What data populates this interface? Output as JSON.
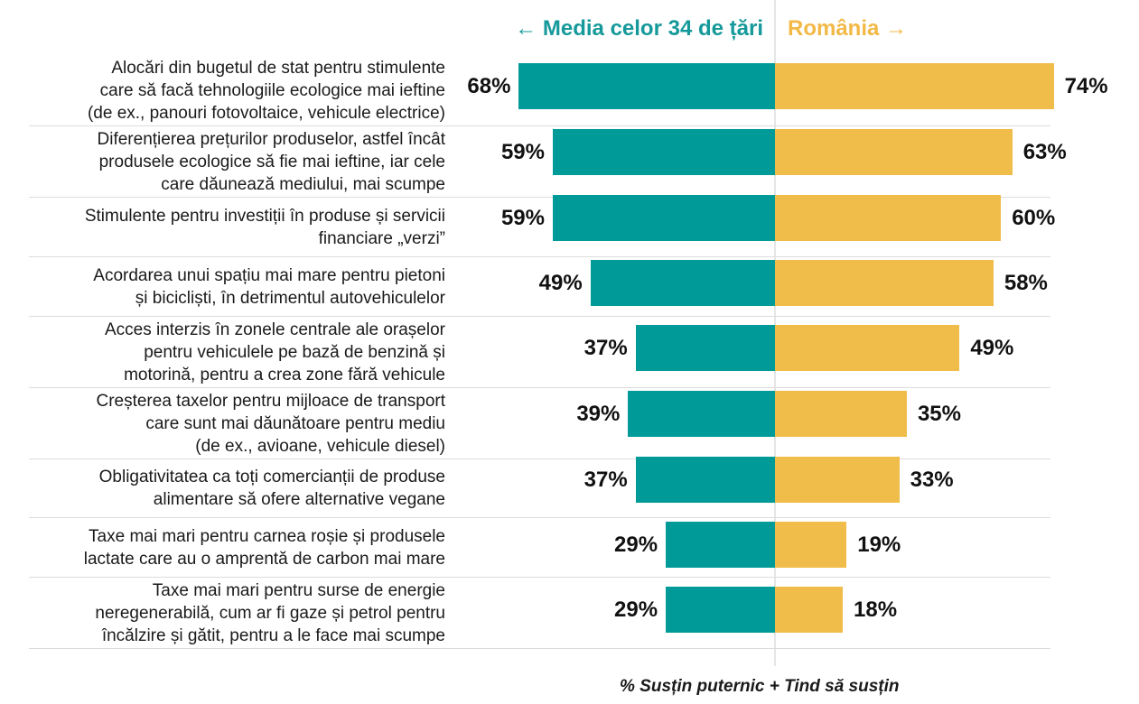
{
  "chart_data": {
    "type": "bar",
    "orientation": "horizontal-diverging",
    "title": "",
    "xlabel": "% Susțin puternic + Tind să susțin",
    "ylabel": "",
    "unit": "%",
    "xlim": [
      0,
      80
    ],
    "grid": false,
    "legend_position": "top",
    "colors": {
      "left_series": "#009b98",
      "right_series": "#f0bc4a",
      "left_header_text": "#16999a",
      "right_header_text": "#f2b947"
    },
    "categories": [
      "Alocări din bugetul de stat pentru stimulente care să facă tehnologiile ecologice mai ieftine (de ex., panouri fotovoltaice, vehicule electrice)",
      "Diferențierea prețurilor produselor, astfel încât produsele ecologice să fie mai ieftine, iar cele care dăunează mediului, mai scumpe",
      "Stimulente pentru investiții în produse și servicii financiare „verzi”",
      "Acordarea unui spațiu mai mare pentru pietoni și bicicliști, în detrimentul autovehiculelor",
      "Acces interzis în zonele centrale ale orașelor pentru vehiculele pe bază de benzină și motorină, pentru a crea zone fără vehicule",
      "Creșterea taxelor pentru mijloace de transport care sunt mai dăunătoare pentru mediu (de ex., avioane, vehicule diesel)",
      "Obligativitatea ca toți comercianții de produse alimentare să ofere alternative vegane",
      "Taxe mai mari pentru carnea roșie și produsele lactate care au o amprentă de carbon mai mare",
      "Taxe mai mari pentru surse de energie neregenerabilă, cum ar fi gaze și petrol pentru încălzire și gătit, pentru a le face mai scumpe"
    ],
    "category_lines": [
      [
        "Alocări din bugetul de stat pentru stimulente",
        "care să facă tehnologiile ecologice mai ieftine",
        "(de ex., panouri fotovoltaice, vehicule electrice)"
      ],
      [
        "Diferențierea prețurilor produselor, astfel încât",
        "produsele ecologice să fie mai ieftine, iar cele",
        "care dăunează mediului, mai scumpe"
      ],
      [
        "Stimulente pentru investiții în produse și servicii",
        "financiare „verzi”"
      ],
      [
        "Acordarea unui spațiu mai mare pentru pietoni",
        "și bicicliști, în detrimentul autovehiculelor"
      ],
      [
        "Acces interzis în zonele centrale ale orașelor",
        "pentru vehiculele pe bază de benzină și",
        "motorină, pentru a crea zone fără vehicule"
      ],
      [
        "Creșterea taxelor pentru mijloace de transport",
        "care sunt mai dăunătoare pentru mediu",
        "(de ex., avioane, vehicule diesel)"
      ],
      [
        "Obligativitatea ca toți comercianții de produse",
        "alimentare să ofere alternative vegane"
      ],
      [
        "Taxe mai mari pentru carnea roșie și produsele",
        "lactate care au o amprentă de carbon mai mare"
      ],
      [
        "Taxe mai mari pentru surse de energie",
        "neregenerabilă, cum ar fi gaze și petrol pentru",
        "încălzire și gătit, pentru a le face mai scumpe"
      ]
    ],
    "series": [
      {
        "name": "Media celor 34 de țări",
        "header": "← Media celor 34 de țări",
        "direction": "left",
        "values": [
          68,
          59,
          59,
          49,
          37,
          39,
          37,
          29,
          29
        ]
      },
      {
        "name": "România",
        "header": "România →",
        "direction": "right",
        "values": [
          74,
          63,
          60,
          58,
          49,
          35,
          33,
          19,
          18
        ]
      }
    ]
  }
}
